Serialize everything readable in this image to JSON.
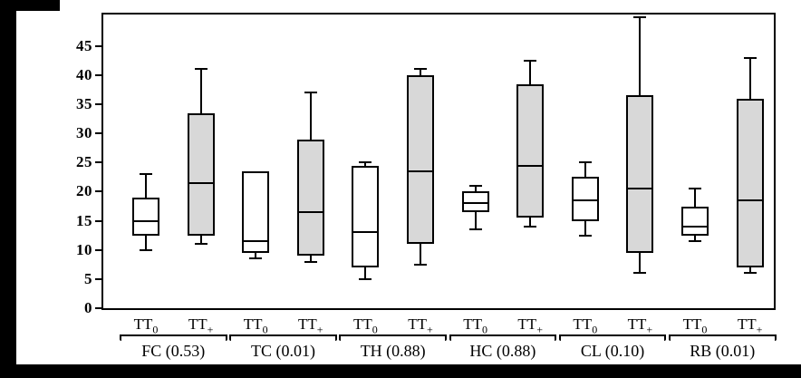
{
  "colors": {
    "box_fill_tt0": "#ffffff",
    "box_fill_ttplus": "#d8d8d8",
    "line": "#000000",
    "background": "#ffffff",
    "scan_border": "#000000"
  },
  "chart_data": {
    "type": "boxplot",
    "title": "",
    "xlabel": "",
    "ylabel": "",
    "ylim": [
      0,
      50.4
    ],
    "yticks": [
      0,
      5,
      10,
      15,
      20,
      25,
      30,
      35,
      40,
      45
    ],
    "grid": false,
    "legend_position": "none",
    "condition_labels": [
      {
        "base": "TT",
        "sub": "0"
      },
      {
        "base": "TT",
        "sub": "+"
      }
    ],
    "groups": [
      {
        "label": "FC (0.53)",
        "boxes": [
          {
            "condition": "TT0",
            "fill": "#ffffff",
            "min": 10,
            "q1": 12.5,
            "median": 15,
            "q3": 19,
            "max": 23
          },
          {
            "condition": "TT+",
            "fill": "#d8d8d8",
            "min": 11,
            "q1": 12.5,
            "median": 21.5,
            "q3": 33.5,
            "max": 41
          }
        ]
      },
      {
        "label": "TC (0.01)",
        "boxes": [
          {
            "condition": "TT0",
            "fill": "#ffffff",
            "min": 8.5,
            "q1": 9.5,
            "median": 11.5,
            "q3": 23.5,
            "max": 23.5
          },
          {
            "condition": "TT+",
            "fill": "#d8d8d8",
            "min": 8,
            "q1": 9,
            "median": 16.5,
            "q3": 29,
            "max": 37
          }
        ]
      },
      {
        "label": "TH (0.88)",
        "boxes": [
          {
            "condition": "TT0",
            "fill": "#ffffff",
            "min": 5,
            "q1": 7,
            "median": 13,
            "q3": 24.5,
            "max": 25
          },
          {
            "condition": "TT+",
            "fill": "#d8d8d8",
            "min": 7.5,
            "q1": 11,
            "median": 23.5,
            "q3": 40,
            "max": 41
          }
        ]
      },
      {
        "label": "HC (0.88)",
        "boxes": [
          {
            "condition": "TT0",
            "fill": "#ffffff",
            "min": 13.5,
            "q1": 16.5,
            "median": 18,
            "q3": 20,
            "max": 21
          },
          {
            "condition": "TT+",
            "fill": "#d8d8d8",
            "min": 14,
            "q1": 15.5,
            "median": 24.5,
            "q3": 38.5,
            "max": 42.5
          }
        ]
      },
      {
        "label": "CL (0.10)",
        "boxes": [
          {
            "condition": "TT0",
            "fill": "#ffffff",
            "min": 12.5,
            "q1": 15,
            "median": 18.5,
            "q3": 22.5,
            "max": 25
          },
          {
            "condition": "TT+",
            "fill": "#d8d8d8",
            "min": 6,
            "q1": 9.5,
            "median": 20.5,
            "q3": 36.5,
            "max": 50
          }
        ]
      },
      {
        "label": "RB (0.01)",
        "boxes": [
          {
            "condition": "TT0",
            "fill": "#ffffff",
            "min": 11.5,
            "q1": 12.5,
            "median": 14,
            "q3": 17.5,
            "max": 20.5
          },
          {
            "condition": "TT+",
            "fill": "#d8d8d8",
            "min": 6,
            "q1": 7,
            "median": 18.5,
            "q3": 36,
            "max": 43
          }
        ]
      }
    ]
  }
}
